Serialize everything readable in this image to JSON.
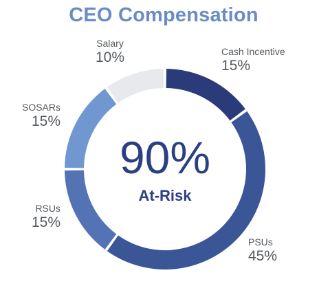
{
  "chart_data": {
    "type": "pie",
    "title": "CEO Compensation",
    "center_value": "90%",
    "center_label": "At-Risk",
    "slices": [
      {
        "name": "Cash Incentive",
        "value": 15,
        "label": "15%",
        "color": "#2b3b7a"
      },
      {
        "name": "PSUs",
        "value": 45,
        "label": "45%",
        "color": "#3b5697"
      },
      {
        "name": "RSUs",
        "value": 15,
        "label": "15%",
        "color": "#5473b4"
      },
      {
        "name": "SOSARs",
        "value": 15,
        "label": "15%",
        "color": "#7197d0"
      },
      {
        "name": "Salary",
        "value": 10,
        "label": "10%",
        "color": "#e7e9ed"
      }
    ]
  }
}
